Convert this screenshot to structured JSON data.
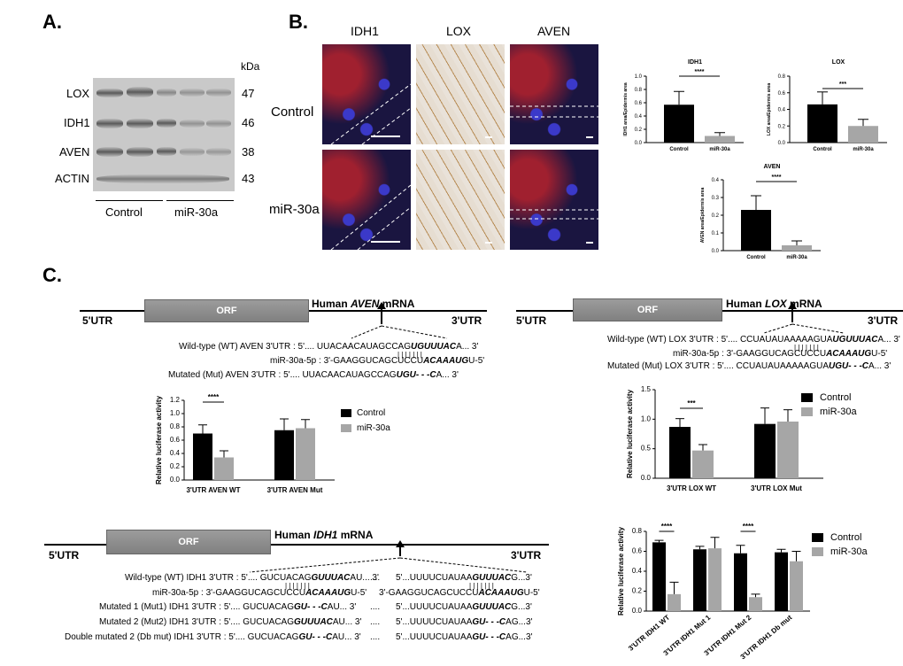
{
  "panels": {
    "A": "A.",
    "B": "B.",
    "C": "C."
  },
  "panel_a": {
    "kda_label": "kDa",
    "rows": [
      {
        "protein": "LOX",
        "kda": "47"
      },
      {
        "protein": "IDH1",
        "kda": "46"
      },
      {
        "protein": "AVEN",
        "kda": "38"
      },
      {
        "protein": "ACTIN",
        "kda": "43"
      }
    ],
    "groups": [
      "Control",
      "miR-30a"
    ]
  },
  "panel_b": {
    "columns": [
      "IDH1",
      "LOX",
      "AVEN"
    ],
    "rows": [
      "Control",
      "miR-30a"
    ]
  },
  "chart_data": [
    {
      "type": "bar",
      "title": "IDH1",
      "ylabel": "IDH1 area/Epidermis area",
      "categories": [
        "Control",
        "miR-30a"
      ],
      "values": [
        0.57,
        0.1
      ],
      "errors": [
        0.2,
        0.05
      ],
      "ylim": [
        0,
        1.0
      ],
      "yticks": [
        "0.0",
        "0.2",
        "0.4",
        "0.6",
        "0.8",
        "1.0"
      ],
      "significance": "****",
      "colors": [
        "#000000",
        "#a6a6a6"
      ]
    },
    {
      "type": "bar",
      "title": "LOX",
      "ylabel": "LOX area/Epidermis area",
      "categories": [
        "Control",
        "miR-30a"
      ],
      "values": [
        0.46,
        0.2
      ],
      "errors": [
        0.15,
        0.08
      ],
      "ylim": [
        0,
        0.8
      ],
      "yticks": [
        "0.0",
        "0.2",
        "0.4",
        "0.6",
        "0.8"
      ],
      "significance": "***",
      "colors": [
        "#000000",
        "#a6a6a6"
      ]
    },
    {
      "type": "bar",
      "title": "AVEN",
      "ylabel": "AVEN area/Epidermis area",
      "categories": [
        "Control",
        "miR-30a"
      ],
      "values": [
        0.23,
        0.03
      ],
      "errors": [
        0.08,
        0.025
      ],
      "ylim": [
        0,
        0.4
      ],
      "yticks": [
        "0.0",
        "0.1",
        "0.2",
        "0.3",
        "0.4"
      ],
      "significance": "****",
      "colors": [
        "#000000",
        "#a6a6a6"
      ]
    },
    {
      "type": "bar",
      "ylabel": "Relative luciferase activity",
      "categories": [
        "3'UTR AVEN WT",
        "3'UTR AVEN Mut"
      ],
      "series": [
        {
          "name": "Control",
          "values": [
            0.7,
            0.75
          ],
          "errors": [
            0.13,
            0.17
          ]
        },
        {
          "name": "miR-30a",
          "values": [
            0.34,
            0.78
          ],
          "errors": [
            0.1,
            0.13
          ]
        }
      ],
      "ylim": [
        0,
        1.2
      ],
      "yticks": [
        "0.0",
        "0.2",
        "0.4",
        "0.6",
        "0.8",
        "1.0",
        "1.2"
      ],
      "significance": "****",
      "colors": [
        "#000000",
        "#a6a6a6"
      ]
    },
    {
      "type": "bar",
      "ylabel": "Relative luciferase activity",
      "categories": [
        "3'UTR LOX  WT",
        "3'UTR LOX Mut"
      ],
      "series": [
        {
          "name": "Control",
          "values": [
            0.87,
            0.92
          ],
          "errors": [
            0.14,
            0.27
          ]
        },
        {
          "name": "miR-30a",
          "values": [
            0.47,
            0.96
          ],
          "errors": [
            0.1,
            0.2
          ]
        }
      ],
      "ylim": [
        0,
        1.5
      ],
      "yticks": [
        "0.0",
        "0.5",
        "1.0",
        "1.5"
      ],
      "significance": "***",
      "colors": [
        "#000000",
        "#a6a6a6"
      ]
    },
    {
      "type": "bar",
      "ylabel": "Relative luciferase activity",
      "categories": [
        "3'UTR IDH1 WT",
        "3'UTR IDH1 Mut 1",
        "3'UTR IDH1 Mut 2",
        "3'UTR IDH1 Db mut"
      ],
      "series": [
        {
          "name": "Control",
          "values": [
            0.69,
            0.62,
            0.58,
            0.59
          ],
          "errors": [
            0.02,
            0.03,
            0.08,
            0.03
          ]
        },
        {
          "name": "miR-30a",
          "values": [
            0.17,
            0.63,
            0.14,
            0.5
          ],
          "errors": [
            0.12,
            0.11,
            0.03,
            0.1
          ]
        }
      ],
      "ylim": [
        0,
        0.8
      ],
      "yticks": [
        "0.0",
        "0.2",
        "0.4",
        "0.6",
        "0.8"
      ],
      "significance": [
        "****",
        "****"
      ],
      "colors": [
        "#000000",
        "#a6a6a6"
      ]
    }
  ],
  "legend": {
    "control": "Control",
    "mir": "miR-30a"
  },
  "aven_construct": {
    "utr5": "5'UTR",
    "utr3": "3'UTR",
    "orf": "ORF",
    "title_pre": "Human ",
    "gene": "AVEN",
    "title_post": " mRNA",
    "wt_label": "Wild-type (WT) AVEN 3'UTR : 5'.... UUACAACAUAGCCAG",
    "wt_seed": "UGUUUAC",
    "wt_end": "A... 3'",
    "pairs": "| | | | | | |",
    "mir_label": "miR-30a-5p : 3'-GAAGGUCAGCUCCU",
    "mir_seed": "ACAAAUG",
    "mir_end": "U-5'",
    "mut_label": "Mutated (Mut) AVEN 3'UTR : 5'.... UUACAACAUAGCCAG",
    "mut_seed": "UGU- - -C",
    "mut_end": "A... 3'"
  },
  "lox_construct": {
    "utr5": "5'UTR",
    "utr3": "3'UTR",
    "orf": "ORF",
    "title_pre": "Human ",
    "gene": "LOX",
    "title_post": " mRNA",
    "wt_label": "Wild-type (WT) LOX 3'UTR : 5'.... CCUAUAUAAAAAGUA",
    "wt_seed": "UGUUUAC",
    "wt_end": "A... 3'",
    "pairs": "| | | | | | |",
    "mir_label": "miR-30a-5p : 3'-GAAGGUCAGCUCCU",
    "mir_seed": "ACAAAUG",
    "mir_end": "U-5'",
    "mut_label": "Mutated (Mut) LOX 3'UTR : 5'.... CCUAUAUAAAAAGUA",
    "mut_seed": "UGU- - -C",
    "mut_end": "A... 3'"
  },
  "idh1_construct": {
    "utr5": "5'UTR",
    "utr3": "3'UTR",
    "orf": "ORF",
    "title_pre": "Human ",
    "gene": "IDH1",
    "title_post": " mRNA",
    "rows": [
      {
        "label": "Wild-type (WT) IDH1 3'UTR : 5'.... GUCUACAG",
        "seed1": "GUUUAC",
        "mid": "AU... 3'",
        "dots": "....",
        "site2": "5'...UUUUCUAUAA",
        "seed2": "GUUUAC",
        "end": "G...3'"
      },
      {
        "label": "miR-30a-5p : 3'-GAAGGUCAGCUCCU",
        "seed1": "ACAAAUG",
        "mid": "U-5'",
        "dots": "",
        "site2": "3'-GAAGGUCAGCUCCU",
        "seed2": "ACAAAUG",
        "end": "U-5'"
      },
      {
        "label": "Mutated 1 (Mut1) IDH1 3'UTR : 5'.... GUCUACAG",
        "seed1": "GU- - -C",
        "mid": "AU... 3'",
        "dots": "....",
        "site2": "5'...UUUUCUAUAA",
        "seed2": "GUUUAC",
        "end": "G...3'"
      },
      {
        "label": "Mutated 2 (Mut2) IDH1 3'UTR : 5'.... GUCUACAG",
        "seed1": "GUUUAC",
        "mid": "AU... 3'",
        "dots": "....",
        "site2": "5'...UUUUCUAUAA",
        "seed2": "GU- - -C",
        "end": "AG...3'"
      },
      {
        "label": "Double mutated 2 (Db mut) IDH1 3'UTR : 5'.... GUCUACAG",
        "seed1": "GU- - -C",
        "mid": "AU... 3'",
        "dots": "....",
        "site2": "5'...UUUUCUAUAA",
        "seed2": "GU- - -C",
        "end": "AG...3'"
      }
    ]
  }
}
